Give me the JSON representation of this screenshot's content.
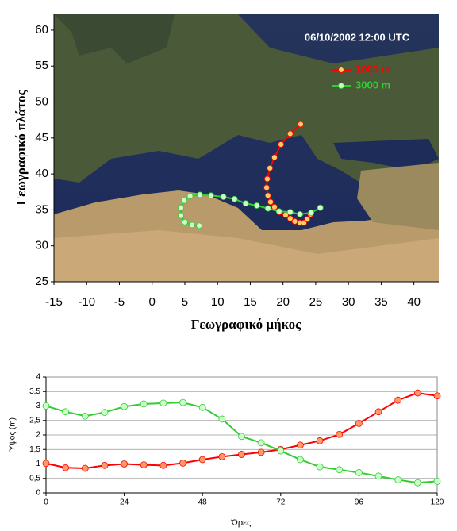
{
  "chart_data": [
    {
      "type": "line",
      "annotation": "06/10/2002 12:00 UTC",
      "xlabel": "Γεωγραφικό μήκος",
      "ylabel": "Γεωγραφικό πλάτος",
      "xlim": [
        -15,
        43.8
      ],
      "ylim": [
        25,
        62.2
      ],
      "xticks": [
        -15,
        -10,
        -5,
        0,
        5,
        10,
        15,
        20,
        25,
        30,
        35,
        40
      ],
      "yticks": [
        25,
        30,
        35,
        40,
        45,
        50,
        55,
        60
      ],
      "grid": false,
      "legend": "upper right",
      "series": [
        {
          "name": "1000 m",
          "color": "#ff0000",
          "marker_color": "#ffcc66",
          "x": [
            22.7,
            21.1,
            19.7,
            18.7,
            18.0,
            17.6,
            17.5,
            17.7,
            18.1,
            18.7,
            19.5,
            20.4,
            21.1,
            21.8,
            22.6,
            23.2,
            23.7,
            24.2
          ],
          "values": [
            46.9,
            45.6,
            44.1,
            42.3,
            40.8,
            39.3,
            38.1,
            37.0,
            36.1,
            35.4,
            34.7,
            34.3,
            33.8,
            33.4,
            33.2,
            33.2,
            33.7,
            34.4
          ]
        },
        {
          "name": "3000 m",
          "color": "#33cc33",
          "marker_color": "#ccffcc",
          "x": [
            25.7,
            24.3,
            22.6,
            21.1,
            19.4,
            17.7,
            16.0,
            14.3,
            12.6,
            10.9,
            9.0,
            7.3,
            5.8,
            4.9,
            4.4,
            4.4,
            5.0,
            6.1,
            7.2
          ],
          "values": [
            35.3,
            34.6,
            34.4,
            34.7,
            34.8,
            35.2,
            35.6,
            35.9,
            36.5,
            36.8,
            37.0,
            37.1,
            36.9,
            36.3,
            35.3,
            34.2,
            33.3,
            32.9,
            32.8
          ]
        }
      ]
    },
    {
      "type": "line",
      "xlabel": "Ώρες",
      "ylabel": "Ύψος (m)",
      "xlim": [
        0,
        120
      ],
      "ylim": [
        0,
        4
      ],
      "xticks": [
        0,
        24,
        48,
        72,
        96,
        120
      ],
      "yticks": [
        0,
        {
          "value": 0.5,
          "label": "0,5"
        },
        1,
        {
          "value": 1.5,
          "label": "1,5"
        },
        2,
        {
          "value": 2.5,
          "label": "2,5"
        },
        3,
        {
          "value": 3.5,
          "label": "3,5"
        },
        4
      ],
      "grid": true,
      "series": [
        {
          "color": "#ff0000",
          "marker_color": "#ff9966",
          "x": [
            0,
            6,
            12,
            18,
            24,
            30,
            36,
            42,
            48,
            54,
            60,
            66,
            72,
            78,
            84,
            90,
            96,
            102,
            108,
            114,
            120
          ],
          "values": [
            1.02,
            0.87,
            0.85,
            0.95,
            1.0,
            0.97,
            0.95,
            1.03,
            1.15,
            1.25,
            1.33,
            1.4,
            1.5,
            1.65,
            1.8,
            2.02,
            2.4,
            2.8,
            3.2,
            3.45,
            3.35
          ]
        },
        {
          "color": "#33cc33",
          "marker_color": "#ccffcc",
          "x": [
            0,
            6,
            12,
            18,
            24,
            30,
            36,
            42,
            48,
            54,
            60,
            66,
            72,
            78,
            84,
            90,
            96,
            102,
            108,
            114,
            120
          ],
          "values": [
            3.0,
            2.8,
            2.65,
            2.78,
            2.98,
            3.07,
            3.1,
            3.12,
            2.95,
            2.55,
            1.95,
            1.73,
            1.45,
            1.15,
            0.9,
            0.8,
            0.7,
            0.58,
            0.45,
            0.35,
            0.4
          ]
        }
      ]
    }
  ]
}
